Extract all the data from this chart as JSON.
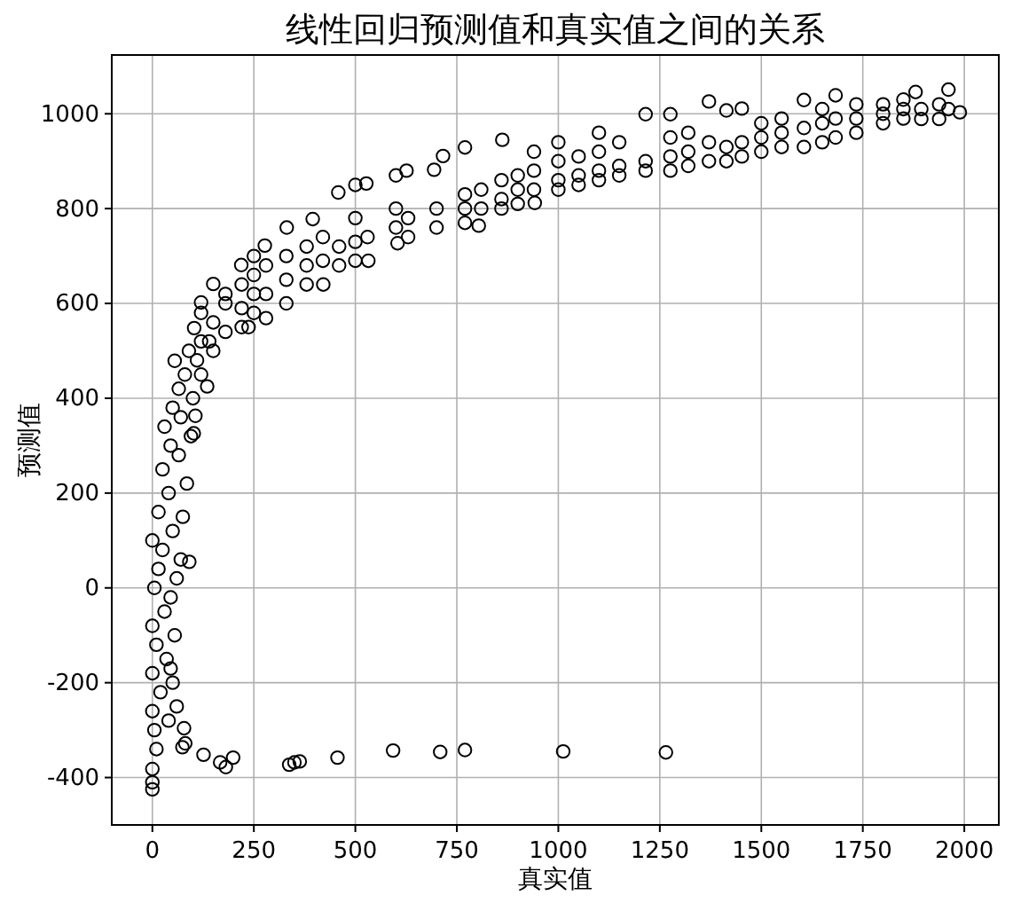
{
  "chart_data": {
    "type": "scatter",
    "title": "线性回归预测值和真实值之间的关系",
    "xlabel": "真实值",
    "ylabel": "预测值",
    "x": [
      0,
      0,
      0,
      10,
      74,
      81,
      5,
      78,
      40,
      0,
      60,
      20,
      50,
      0,
      45,
      35,
      10,
      55,
      0,
      30,
      45,
      5,
      60,
      15,
      91,
      70,
      25,
      0,
      50,
      75,
      15,
      40,
      85,
      25,
      65,
      45,
      95,
      30,
      70,
      50,
      100,
      65,
      80,
      55,
      110,
      90,
      140,
      126,
      167,
      181,
      199,
      337,
      350,
      363,
      456,
      593,
      709,
      770,
      1012,
      1265,
      103,
      106,
      102,
      120,
      120,
      120,
      120,
      135,
      150,
      150,
      150,
      180,
      180,
      180,
      220,
      220,
      220,
      219,
      237,
      250,
      250,
      250,
      250,
      280,
      280,
      280,
      277,
      330,
      330,
      330,
      331,
      380,
      380,
      380,
      395,
      421,
      420,
      420,
      460,
      460,
      458,
      500,
      500,
      500,
      500,
      532,
      530,
      527,
      604,
      600,
      600,
      600,
      630,
      630,
      626,
      694,
      700,
      700,
      716,
      770,
      770,
      770,
      770,
      804,
      810,
      810,
      860,
      860,
      860,
      862,
      900,
      900,
      900,
      942,
      940,
      940,
      940,
      1000,
      1000,
      1000,
      1000,
      1050,
      1050,
      1050,
      1100,
      1100,
      1100,
      1100,
      1150,
      1150,
      1150,
      1215,
      1215,
      1215,
      1276,
      1276,
      1276,
      1276,
      1320,
      1320,
      1320,
      1371,
      1371,
      1371,
      1414,
      1414,
      1414,
      1452,
      1452,
      1452,
      1500,
      1500,
      1500,
      1550,
      1550,
      1550,
      1605,
      1605,
      1605,
      1650,
      1650,
      1650,
      1683,
      1683,
      1683,
      1734,
      1734,
      1734,
      1800,
      1800,
      1800,
      1850,
      1850,
      1850,
      1894,
      1894,
      1880,
      1938,
      1938,
      1961,
      1961,
      1989
    ],
    "values": [
      -425,
      -410,
      -382,
      -340,
      -336,
      -328,
      -300,
      -296,
      -280,
      -260,
      -250,
      -220,
      -200,
      -180,
      -170,
      -150,
      -120,
      -100,
      -80,
      -50,
      -20,
      0,
      20,
      40,
      55,
      60,
      80,
      100,
      120,
      150,
      160,
      200,
      220,
      250,
      280,
      300,
      320,
      340,
      360,
      380,
      400,
      420,
      450,
      479,
      480,
      500,
      520,
      -352,
      -368,
      -378,
      -358,
      -373,
      -368,
      -366,
      -358,
      -343,
      -346,
      -342,
      -345,
      -347,
      548,
      363,
      326,
      450,
      520,
      580,
      602,
      425,
      500,
      560,
      641,
      540,
      600,
      620,
      550,
      590,
      640,
      681,
      550,
      580,
      620,
      660,
      700,
      569,
      620,
      680,
      722,
      600,
      650,
      700,
      760,
      640,
      680,
      720,
      778,
      640,
      690,
      740,
      680,
      720,
      834,
      690,
      730,
      780,
      850,
      690,
      740,
      853,
      727,
      760,
      800,
      870,
      740,
      780,
      880,
      882,
      760,
      800,
      911,
      770,
      800,
      830,
      929,
      764,
      800,
      840,
      800,
      820,
      860,
      945,
      810,
      840,
      870,
      812,
      840,
      880,
      920,
      840,
      860,
      900,
      940,
      850,
      870,
      910,
      860,
      880,
      920,
      960,
      870,
      890,
      940,
      880,
      900,
      999,
      880,
      910,
      950,
      999,
      890,
      920,
      960,
      900,
      940,
      1026,
      900,
      930,
      1007,
      910,
      940,
      1011,
      920,
      950,
      980,
      930,
      960,
      990,
      930,
      970,
      1029,
      940,
      980,
      1010,
      950,
      990,
      1039,
      960,
      990,
      1020,
      980,
      1000,
      1020,
      990,
      1010,
      1030,
      989,
      1010,
      1046,
      989,
      1020,
      1051,
      1010,
      1003
    ],
    "color": "#000000",
    "marker": "circle",
    "grid": true,
    "xlim": [
      -100,
      2085
    ],
    "ylim": [
      -500,
      1124
    ],
    "xticks": [
      0,
      250,
      500,
      750,
      1000,
      1250,
      1500,
      1750,
      2000
    ],
    "yticks": [
      -400,
      -200,
      0,
      200,
      400,
      600,
      800,
      1000
    ]
  }
}
